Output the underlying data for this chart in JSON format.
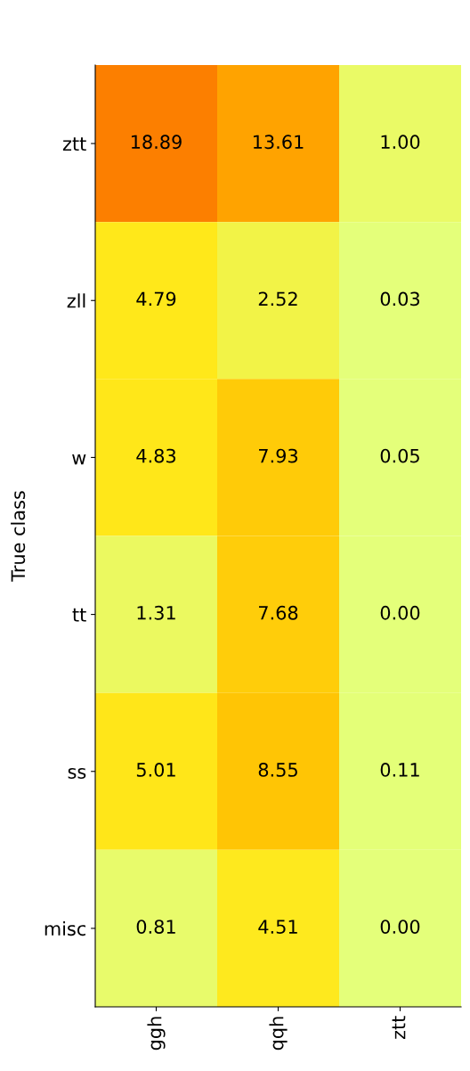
{
  "chart_data": {
    "type": "heatmap",
    "ylabel": "True class",
    "categories": [
      "ggh",
      "qqh",
      "ztt"
    ],
    "y_categories": [
      "ztt",
      "zll",
      "w",
      "tt",
      "ss",
      "misc"
    ],
    "cells": [
      [
        18.89,
        13.61,
        1.0
      ],
      [
        4.79,
        2.52,
        0.03
      ],
      [
        4.83,
        7.93,
        0.05
      ],
      [
        1.31,
        7.68,
        0.0
      ],
      [
        5.01,
        8.55,
        0.11
      ],
      [
        0.81,
        4.51,
        0.0
      ]
    ],
    "cell_labels": [
      [
        "18.89",
        "13.61",
        "1.00"
      ],
      [
        "4.79",
        "2.52",
        "0.03"
      ],
      [
        "4.83",
        "7.93",
        "0.05"
      ],
      [
        "1.31",
        "7.68",
        "0.00"
      ],
      [
        "5.01",
        "8.55",
        "0.11"
      ],
      [
        "0.81",
        "4.51",
        "0.00"
      ]
    ]
  }
}
